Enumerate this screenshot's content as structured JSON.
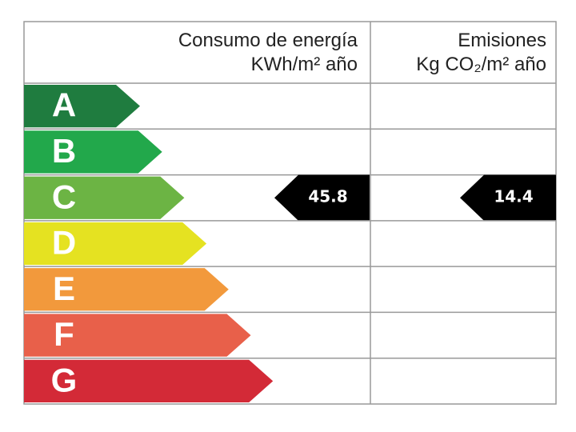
{
  "header": {
    "consumption_title": "Consumo de energía",
    "consumption_unit": "KWh/m² año",
    "emissions_title": "Emisiones",
    "emissions_unit": "Kg CO₂/m² año"
  },
  "rows": [
    {
      "letter": "A",
      "color": "#1f7c3f"
    },
    {
      "letter": "B",
      "color": "#22a84b"
    },
    {
      "letter": "C",
      "color": "#6cb444",
      "consumption": 45.8,
      "emissions": 14.4
    },
    {
      "letter": "D",
      "color": "#e5e221"
    },
    {
      "letter": "E",
      "color": "#f2993c"
    },
    {
      "letter": "F",
      "color": "#e8604a"
    },
    {
      "letter": "G",
      "color": "#d32a37"
    }
  ]
}
